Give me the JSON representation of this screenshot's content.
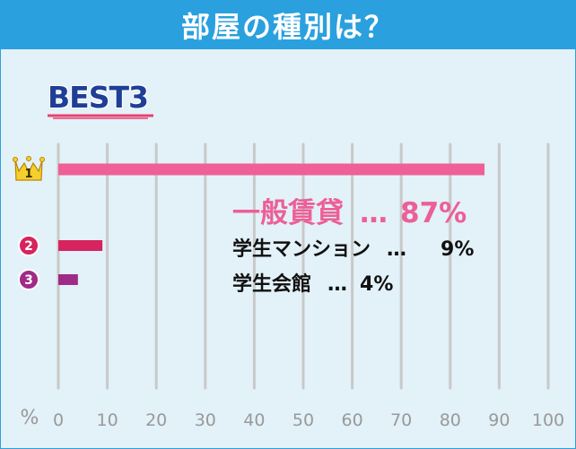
{
  "header": {
    "title": "部屋の種別は？"
  },
  "badge": {
    "text": "BEST3"
  },
  "ranks": [
    "1",
    "2",
    "3"
  ],
  "separator": "…",
  "axis": {
    "unit": "%"
  },
  "colors": {
    "header": "#2aa0de",
    "background": "#e3f1f8",
    "rank1": "#ef5f98",
    "rank2": "#d6245e",
    "rank3": "#a02a87",
    "grid": "#c9c9c9",
    "badge": "#1f3f96"
  },
  "chart_data": {
    "type": "bar",
    "orientation": "horizontal",
    "categories": [
      "一般賃貸",
      "学生マンション",
      "学生会館"
    ],
    "values": [
      87,
      9,
      4
    ],
    "value_labels": [
      "87%",
      "9%",
      "4%"
    ],
    "xlim": [
      0,
      100
    ],
    "xticks": [
      0,
      10,
      20,
      30,
      40,
      50,
      60,
      70,
      80,
      90,
      100
    ],
    "grid": true
  }
}
